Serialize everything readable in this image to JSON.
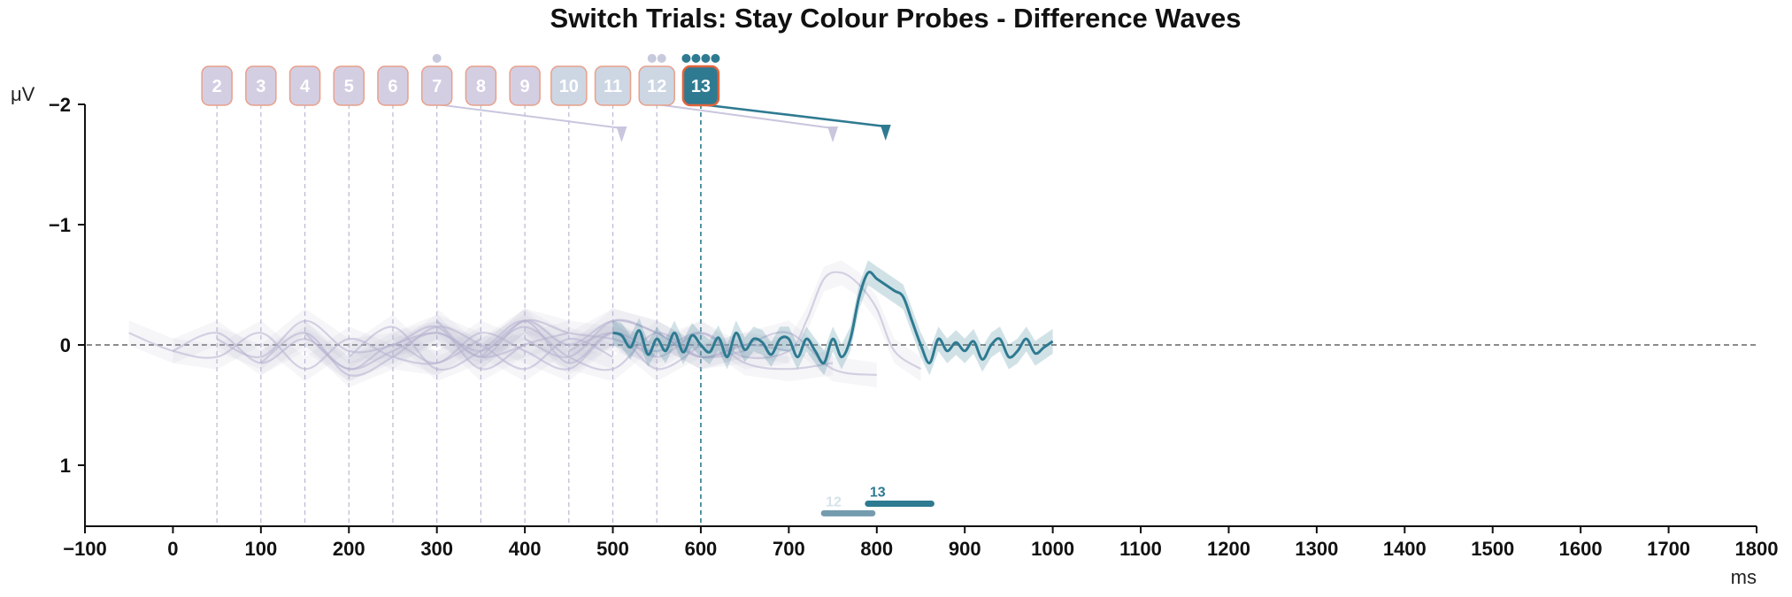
{
  "chart_data": {
    "type": "line",
    "title": "Switch Trials: Stay Colour Probes - Difference Waves",
    "xlabel": "ms",
    "ylabel": "μV",
    "xlim": [
      -100,
      1800
    ],
    "ylim": [
      -2,
      1.5
    ],
    "y_inverted": true,
    "xticks": [
      -100,
      0,
      100,
      200,
      300,
      400,
      500,
      600,
      700,
      800,
      900,
      1000,
      1100,
      1200,
      1300,
      1400,
      1500,
      1600,
      1700,
      1800
    ],
    "yticks": [
      -2,
      -1,
      0,
      1
    ],
    "x_tick_labels": [
      "−100",
      "0",
      "100",
      "200",
      "300",
      "400",
      "500",
      "600",
      "700",
      "800",
      "900",
      "1000",
      "1100",
      "1200",
      "1300",
      "1400",
      "1500",
      "1600",
      "1700",
      "1800"
    ],
    "y_tick_labels": [
      "−2",
      "−1",
      "0",
      "1"
    ],
    "zero_line": true,
    "grid": false,
    "highlight_color": "#2e7a91",
    "faded_color": "#b7b1cf",
    "badges": [
      {
        "label": "2",
        "onset_ms": 50,
        "dots": 0
      },
      {
        "label": "3",
        "onset_ms": 100,
        "dots": 0
      },
      {
        "label": "4",
        "onset_ms": 150,
        "dots": 0
      },
      {
        "label": "5",
        "onset_ms": 200,
        "dots": 0
      },
      {
        "label": "6",
        "onset_ms": 250,
        "dots": 0
      },
      {
        "label": "7",
        "onset_ms": 300,
        "dots": 1
      },
      {
        "label": "8",
        "onset_ms": 350,
        "dots": 0
      },
      {
        "label": "9",
        "onset_ms": 400,
        "dots": 0
      },
      {
        "label": "10",
        "onset_ms": 450,
        "dots": 0
      },
      {
        "label": "11",
        "onset_ms": 500,
        "dots": 0
      },
      {
        "label": "12",
        "onset_ms": 550,
        "dots": 2
      },
      {
        "label": "13",
        "onset_ms": 600,
        "dots": 4,
        "highlight": true
      }
    ],
    "peak_arrows": [
      {
        "from_ms": 300,
        "to_ms": 510,
        "highlight": false
      },
      {
        "from_ms": 550,
        "to_ms": 750,
        "highlight": false
      },
      {
        "from_ms": 600,
        "to_ms": 810,
        "highlight": true
      }
    ],
    "significance_bars": [
      {
        "label": "12",
        "x_start": 740,
        "x_end": 795,
        "y": 1.4,
        "highlight": false
      },
      {
        "label": "13",
        "x_start": 790,
        "x_end": 862,
        "y": 1.32,
        "highlight": true
      }
    ],
    "series": [
      {
        "name": "13",
        "highlight": true,
        "x": [
          500,
          510,
          520,
          530,
          540,
          550,
          560,
          570,
          580,
          590,
          600,
          610,
          620,
          630,
          640,
          650,
          660,
          670,
          680,
          690,
          700,
          710,
          720,
          730,
          740,
          750,
          760,
          770,
          780,
          790,
          800,
          810,
          820,
          830,
          840,
          850,
          860,
          870,
          880,
          890,
          900,
          910,
          920,
          930,
          940,
          950,
          960,
          970,
          980,
          990,
          1000
        ],
        "y": [
          -0.1,
          -0.08,
          0.02,
          -0.12,
          0.08,
          -0.05,
          0.05,
          -0.1,
          0.06,
          -0.08,
          0.0,
          0.06,
          -0.06,
          0.1,
          -0.1,
          0.04,
          -0.05,
          -0.02,
          0.08,
          -0.05,
          -0.05,
          0.1,
          -0.05,
          0.05,
          0.15,
          -0.05,
          0.1,
          -0.05,
          -0.4,
          -0.6,
          -0.55,
          -0.5,
          -0.45,
          -0.4,
          -0.2,
          0.0,
          0.15,
          -0.05,
          0.05,
          -0.02,
          0.05,
          -0.03,
          0.12,
          0.0,
          -0.05,
          0.1,
          0.05,
          -0.05,
          0.07,
          0.02,
          -0.03
        ]
      },
      {
        "name": "12",
        "highlight": false,
        "x": [
          450,
          500,
          550,
          600,
          650,
          700,
          720,
          740,
          760,
          780,
          800,
          820,
          850
        ],
        "y": [
          0.05,
          -0.1,
          0.1,
          -0.1,
          0.1,
          0.05,
          -0.2,
          -0.55,
          -0.6,
          -0.5,
          -0.3,
          0.05,
          0.2
        ]
      },
      {
        "name": "11",
        "highlight": false,
        "x": [
          400,
          450,
          500,
          550,
          600,
          650,
          700,
          750,
          800
        ],
        "y": [
          -0.05,
          0.1,
          -0.2,
          -0.1,
          0.1,
          0.0,
          -0.1,
          0.2,
          0.25
        ]
      },
      {
        "name": "10",
        "highlight": false,
        "x": [
          350,
          400,
          450,
          500,
          550,
          600,
          650,
          700,
          750
        ],
        "y": [
          0.1,
          -0.2,
          -0.1,
          -0.05,
          0.05,
          -0.1,
          0.15,
          0.2,
          0.15
        ]
      },
      {
        "name": "9",
        "highlight": false,
        "x": [
          300,
          350,
          400,
          450,
          500,
          550,
          600,
          650,
          700
        ],
        "y": [
          -0.2,
          0.1,
          -0.2,
          0.0,
          -0.2,
          -0.1,
          0.1,
          0.0,
          0.05
        ]
      },
      {
        "name": "8",
        "highlight": false,
        "x": [
          250,
          300,
          350,
          400,
          450,
          500,
          550,
          600,
          650
        ],
        "y": [
          0.0,
          -0.1,
          0.05,
          -0.15,
          0.1,
          0.2,
          -0.1,
          0.1,
          0.05
        ]
      },
      {
        "name": "7",
        "highlight": false,
        "x": [
          200,
          250,
          300,
          350,
          400,
          450,
          500,
          550,
          600
        ],
        "y": [
          0.1,
          -0.15,
          0.2,
          0.05,
          -0.2,
          0.15,
          -0.1,
          0.2,
          0.0
        ]
      },
      {
        "name": "6",
        "highlight": false,
        "x": [
          150,
          200,
          250,
          300,
          350,
          400,
          450,
          500,
          550
        ],
        "y": [
          -0.1,
          0.2,
          0.0,
          0.15,
          -0.1,
          0.05,
          0.2,
          -0.1,
          0.1
        ]
      },
      {
        "name": "5",
        "highlight": false,
        "x": [
          100,
          150,
          200,
          250,
          300,
          350,
          400,
          450,
          500
        ],
        "y": [
          0.15,
          -0.1,
          0.25,
          0.1,
          -0.15,
          0.0,
          0.2,
          -0.05,
          0.1
        ]
      },
      {
        "name": "4",
        "highlight": false,
        "x": [
          50,
          100,
          150,
          200,
          250,
          300,
          350,
          400,
          450
        ],
        "y": [
          -0.05,
          0.1,
          -0.2,
          0.05,
          0.0,
          -0.15,
          0.2,
          0.0,
          -0.1
        ]
      },
      {
        "name": "3",
        "highlight": false,
        "x": [
          0,
          50,
          100,
          150,
          200,
          250,
          300,
          350,
          400
        ],
        "y": [
          0.05,
          -0.1,
          0.15,
          -0.05,
          0.2,
          0.05,
          -0.1,
          0.1,
          0.0
        ]
      },
      {
        "name": "2",
        "highlight": false,
        "x": [
          -50,
          0,
          50,
          100,
          150,
          200,
          250,
          300,
          350
        ],
        "y": [
          -0.1,
          0.05,
          0.1,
          -0.1,
          0.2,
          -0.05,
          0.1,
          0.15,
          -0.05
        ]
      }
    ]
  }
}
